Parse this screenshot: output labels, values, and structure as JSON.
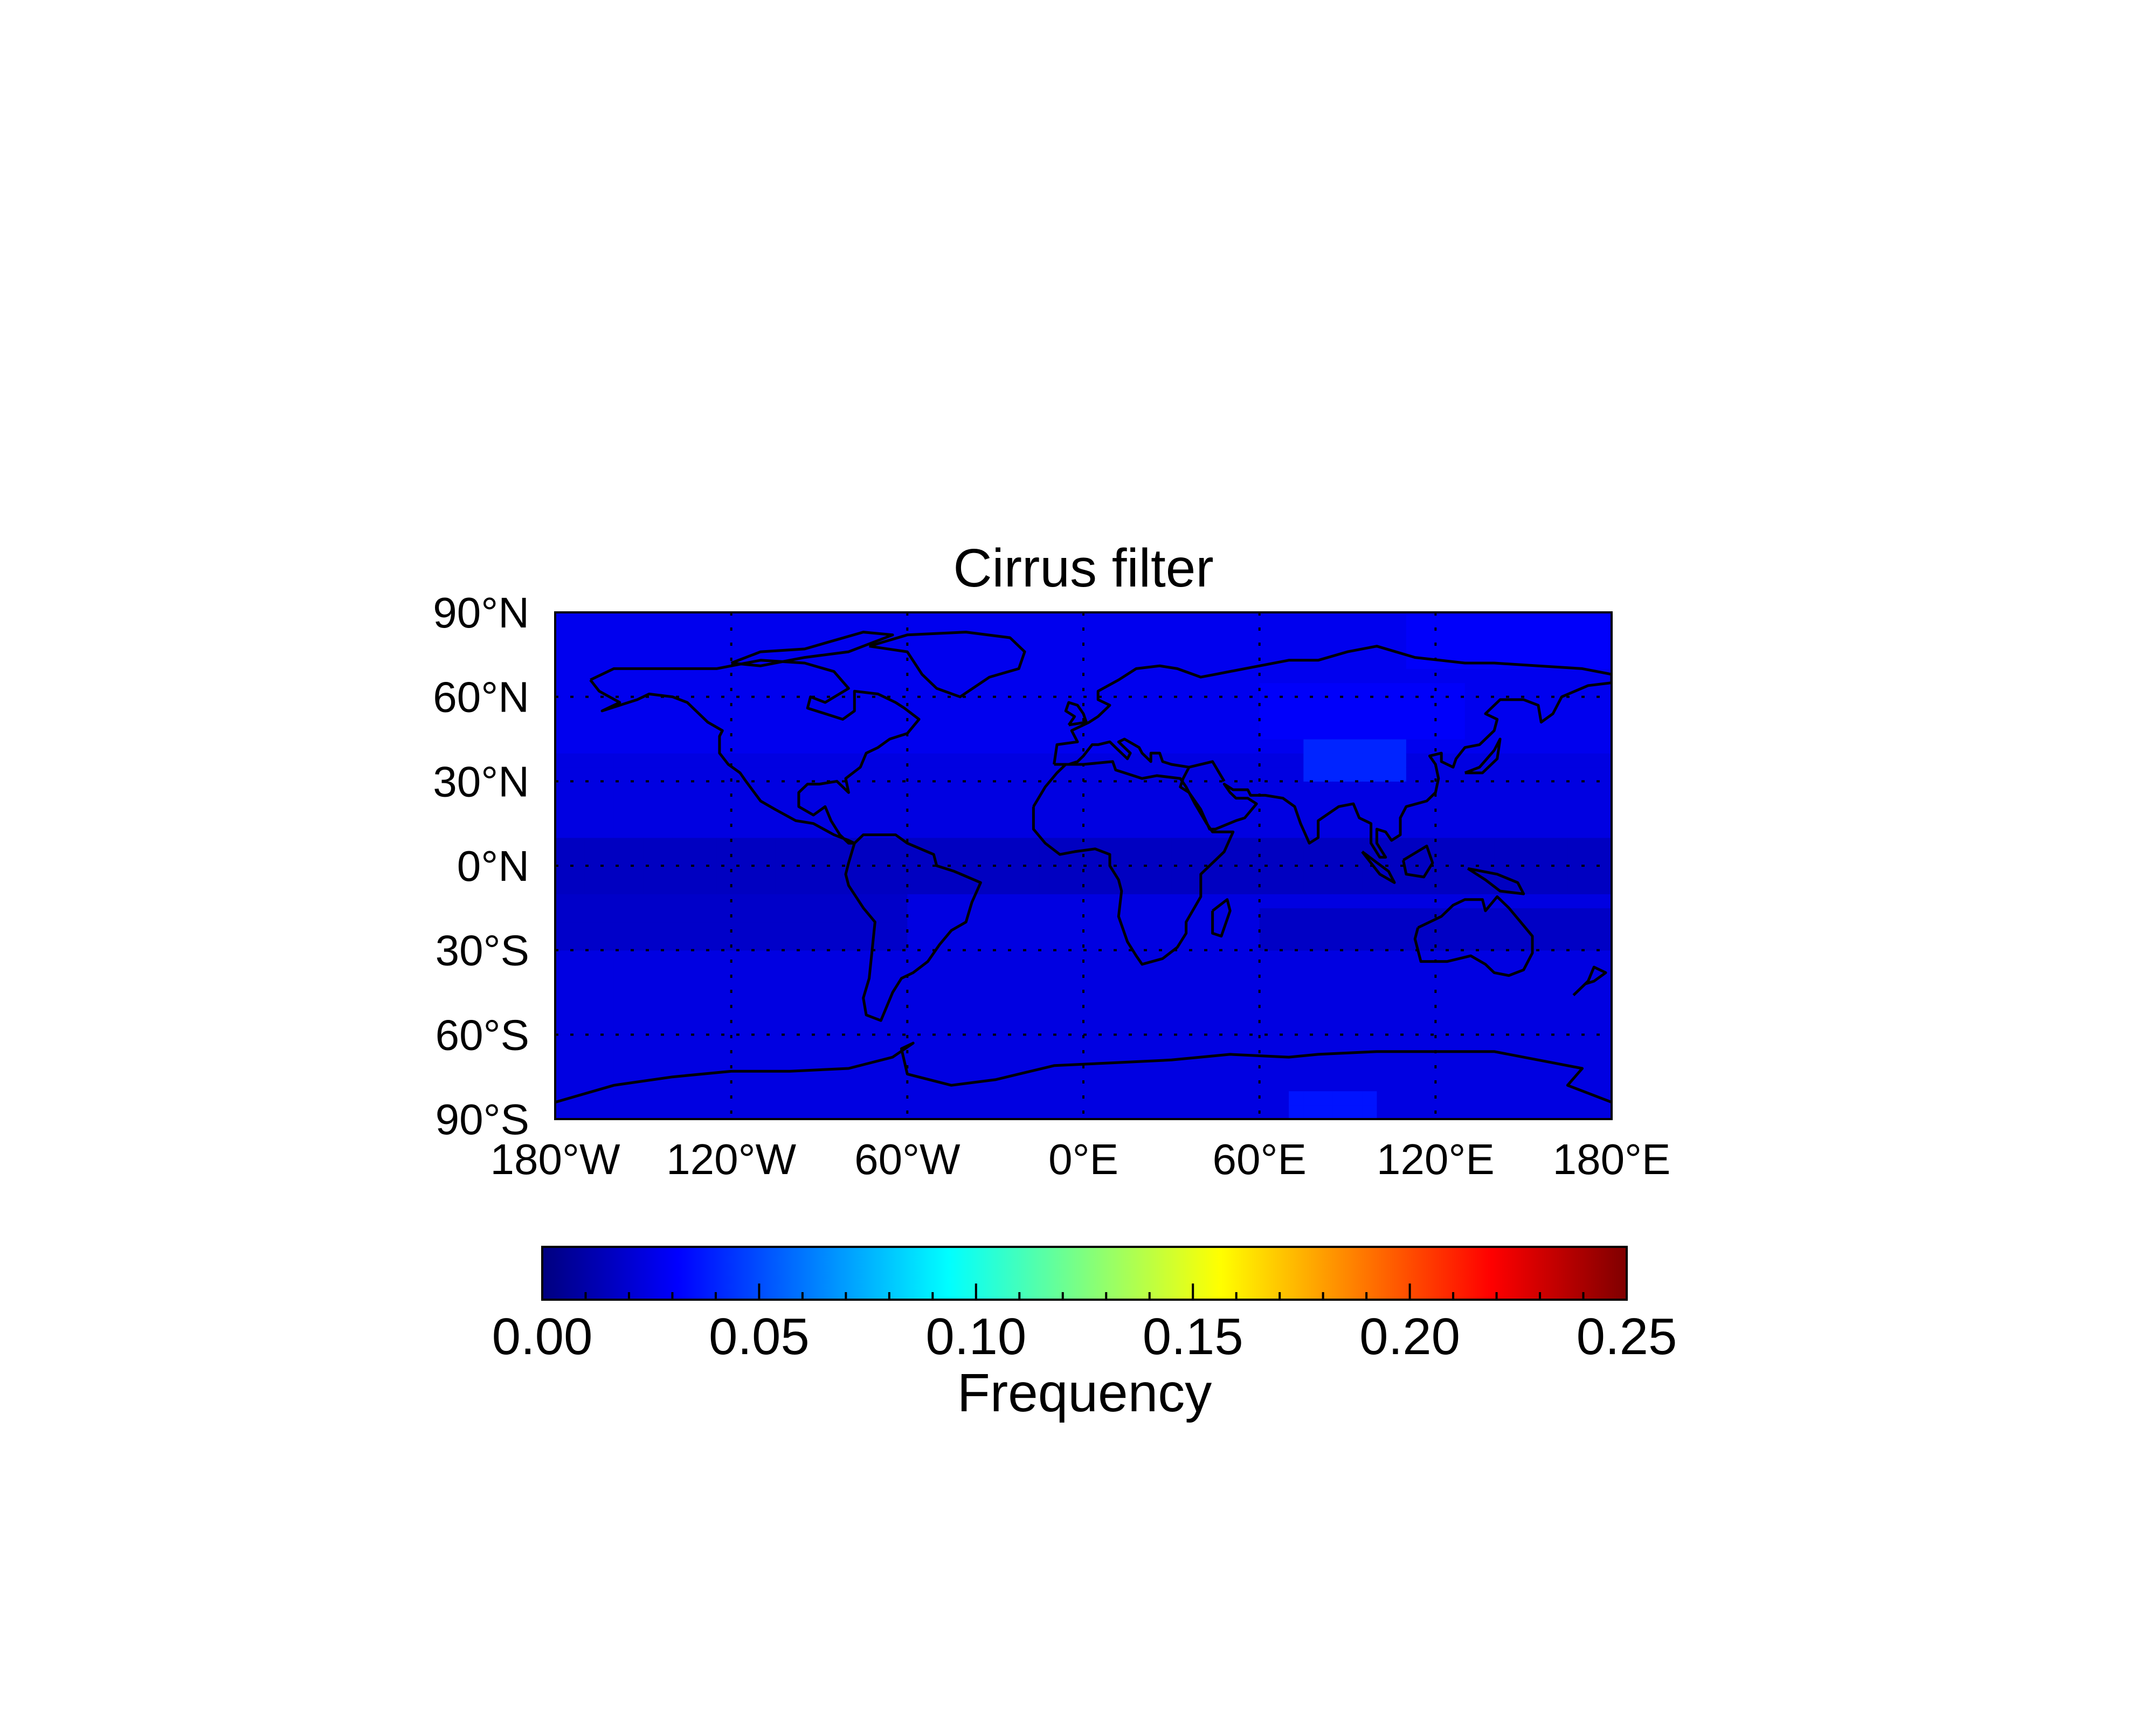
{
  "title": "Cirrus filter",
  "map": {
    "lon_range": [
      -180,
      180
    ],
    "lat_range": [
      -90,
      90
    ],
    "lon_ticks": [
      {
        "value": -180,
        "label": "180°W"
      },
      {
        "value": -120,
        "label": "120°W"
      },
      {
        "value": -60,
        "label": "60°W"
      },
      {
        "value": 0,
        "label": "0°E"
      },
      {
        "value": 60,
        "label": "60°E"
      },
      {
        "value": 120,
        "label": "120°E"
      },
      {
        "value": 180,
        "label": "180°E"
      }
    ],
    "lat_ticks": [
      {
        "value": 90,
        "label": "90°N"
      },
      {
        "value": 60,
        "label": "60°N"
      },
      {
        "value": 30,
        "label": "30°N"
      },
      {
        "value": 0,
        "label": "0°N"
      },
      {
        "value": -30,
        "label": "30°S"
      },
      {
        "value": -60,
        "label": "60°S"
      },
      {
        "value": -90,
        "label": "90°S"
      }
    ],
    "gridlines": "dotted",
    "land_outline_color": "#000000"
  },
  "colorbar": {
    "label": "Frequency",
    "range": [
      0.0,
      0.25
    ],
    "ticks": [
      "0.00",
      "0.05",
      "0.10",
      "0.15",
      "0.20",
      "0.25"
    ],
    "colormap": "jet",
    "colors": [
      "#00007f",
      "#0000ff",
      "#007fff",
      "#00ffff",
      "#7fff7f",
      "#ffff00",
      "#ff7f00",
      "#ff0000",
      "#7f0000"
    ]
  },
  "chart_data": {
    "type": "heatmap",
    "title": "Cirrus filter",
    "value_label": "Frequency",
    "value_range": [
      0.0,
      0.25
    ],
    "background_value": 0.024,
    "features": [
      {
        "lon_range": [
          -180,
          180
        ],
        "lat_range": [
          -10,
          10
        ],
        "value": 0.016
      },
      {
        "lon_range": [
          -180,
          -60
        ],
        "lat_range": [
          -30,
          -10
        ],
        "value": 0.018
      },
      {
        "lon_range": [
          60,
          180
        ],
        "lat_range": [
          -30,
          -15
        ],
        "value": 0.017
      },
      {
        "lon_range": [
          -180,
          180
        ],
        "lat_range": [
          40,
          90
        ],
        "value": 0.027
      },
      {
        "lon_range": [
          75,
          110
        ],
        "lat_range": [
          32,
          45
        ],
        "value": 0.04
      },
      {
        "lon_range": [
          60,
          130
        ],
        "lat_range": [
          45,
          65
        ],
        "value": 0.03
      },
      {
        "lon_range": [
          70,
          100
        ],
        "lat_range": [
          -90,
          -80
        ],
        "value": 0.036
      },
      {
        "lon_range": [
          110,
          180
        ],
        "lat_range": [
          70,
          90
        ],
        "value": 0.03
      }
    ]
  }
}
